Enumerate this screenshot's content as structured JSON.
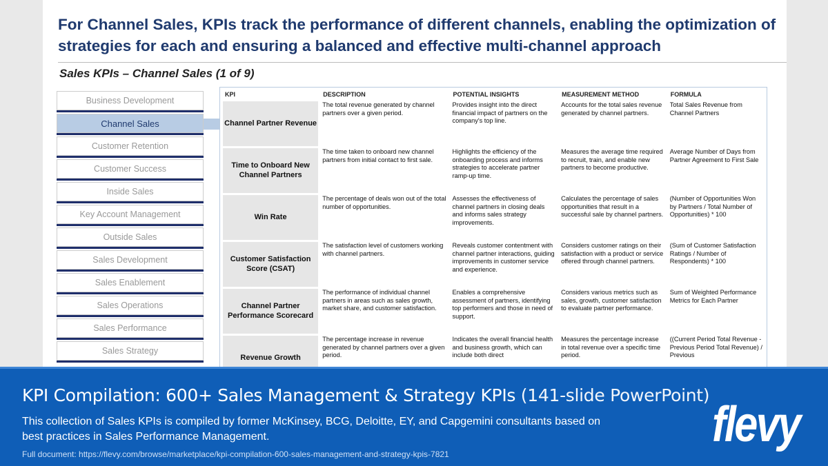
{
  "slide": {
    "headline": "For Channel Sales, KPIs track the performance of different channels, enabling the optimization of strategies for each and ensuring a balanced and effective multi-channel approach",
    "subtitle": "Sales KPIs – Channel Sales (1 of 9)",
    "sidebar": [
      "Business Development",
      "Channel Sales",
      "Customer Retention",
      "Customer Success",
      "Inside Sales",
      "Key Account Management",
      "Outside Sales",
      "Sales Development",
      "Sales Enablement",
      "Sales Operations",
      "Sales Performance",
      "Sales Strategy"
    ],
    "table": {
      "headers": [
        "KPI",
        "DESCRIPTION",
        "POTENTIAL INSIGHTS",
        "MEASUREMENT METHOD",
        "FORMULA"
      ],
      "rows": [
        [
          "Channel Partner Revenue",
          "The total revenue generated by channel partners over a given period.",
          "Provides insight into the direct financial impact of partners on the company's top line.",
          "Accounts for the total sales revenue generated by channel partners.",
          "Total Sales Revenue from Channel Partners"
        ],
        [
          "Time to Onboard New Channel Partners",
          "The time taken to onboard new channel partners from initial contact to first sale.",
          "Highlights the efficiency of the onboarding process and informs strategies to accelerate partner ramp-up time.",
          "Measures the average time required to recruit, train, and enable new partners to become productive.",
          "Average Number of Days from Partner Agreement to First Sale"
        ],
        [
          "Win Rate",
          "The percentage of deals won out of the total number of opportunities.",
          "Assesses the effectiveness of channel partners in closing deals and informs sales strategy improvements.",
          "Calculates the percentage of sales opportunities that result in a successful sale by channel partners.",
          "(Number of Opportunities Won by Partners / Total Number of Opportunities) * 100"
        ],
        [
          "Customer Satisfaction Score (CSAT)",
          "The satisfaction level of customers working with channel partners.",
          "Reveals customer contentment with channel partner interactions, guiding improvements in customer service and experience.",
          "Considers customer ratings on their satisfaction with a product or service offered through channel partners.",
          "(Sum of Customer Satisfaction Ratings / Number of Respondents) * 100"
        ],
        [
          "Channel Partner Performance Scorecard",
          "The performance of individual channel partners in areas such as sales growth, market share, and customer satisfaction.",
          "Enables a comprehensive assessment of partners, identifying top performers and those in need of support.",
          "Considers various metrics such as sales, growth, customer satisfaction to evaluate partner performance.",
          "Sum of Weighted Performance Metrics for Each Partner"
        ],
        [
          "Revenue Growth",
          "The percentage increase in revenue generated by channel partners over a given period.",
          "Indicates the overall financial health and business growth, which can include both direct",
          "Measures the percentage increase in total revenue over a specific time period.",
          "((Current Period Total Revenue - Previous Period Total Revenue) / Previous"
        ]
      ]
    }
  },
  "banner": {
    "title": "KPI Compilation: 600+ Sales Management & Strategy KPIs",
    "title_suffix": "(141-slide PowerPoint)",
    "description": "This collection of Sales KPIs is compiled by former McKinsey, BCG, Deloitte, EY, and Capgemini consultants based on best practices in Sales Performance Management.",
    "link": "Full document: https://flevy.com/browse/marketplace/kpi-compilation-600-sales-management-and-strategy-kpis-7821",
    "logo": "flevy"
  }
}
